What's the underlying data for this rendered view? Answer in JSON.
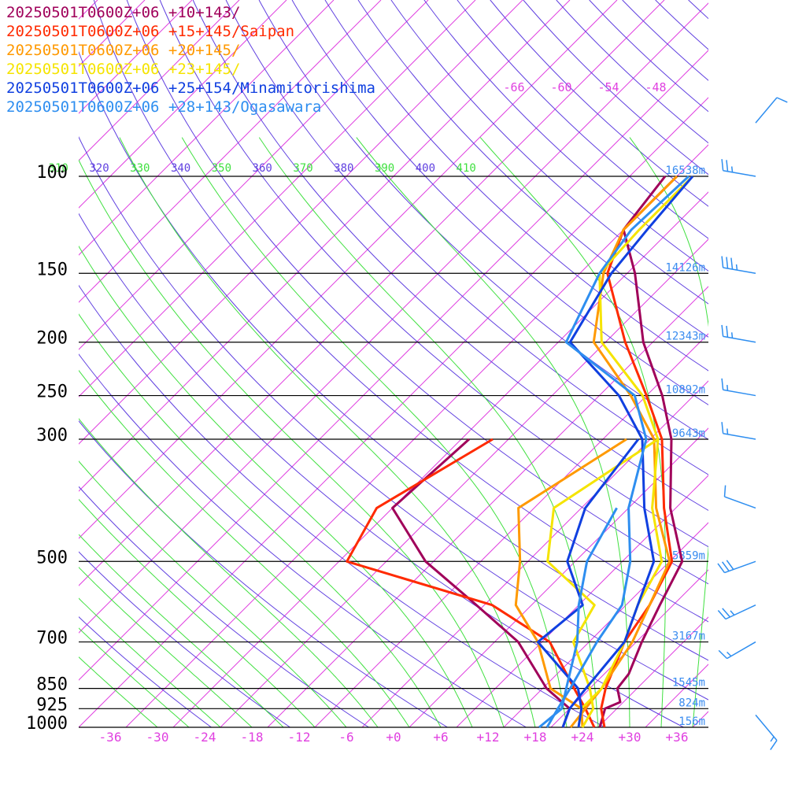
{
  "chart_data": {
    "type": "line",
    "title": "",
    "xlabel": "",
    "ylabel": "",
    "xlim": [
      -40,
      40
    ],
    "ylim_pressure": [
      1000,
      80
    ],
    "grid": true,
    "series": [
      {
        "name": "20250501T0600Z+06 +10+143/",
        "color": "#a0005a",
        "temperature": [
          [
            1000,
            26.2
          ],
          [
            925,
            24.5
          ],
          [
            900,
            25.6
          ],
          [
            850,
            23.5
          ],
          [
            800,
            23.1
          ],
          [
            700,
            20.7
          ],
          [
            600,
            18.3
          ],
          [
            500,
            15.6
          ],
          [
            400,
            7.3
          ],
          [
            300,
            -1.3
          ],
          [
            250,
            -8.0
          ],
          [
            200,
            -17.2
          ],
          [
            150,
            -27.0
          ],
          [
            125,
            -34.0
          ],
          [
            100,
            -35.5
          ]
        ],
        "dewpoint": [
          [
            1000,
            21.5
          ],
          [
            925,
            20.0
          ],
          [
            850,
            14.5
          ],
          [
            700,
            5.0
          ],
          [
            600,
            -5.0
          ],
          [
            500,
            -17.0
          ],
          [
            400,
            -28.0
          ],
          [
            300,
            -27.0
          ]
        ]
      },
      {
        "name": "20250501T0600Z+06 +15+145/Saipan",
        "color": "#ff2a00",
        "temperature": [
          [
            1000,
            26.8
          ],
          [
            925,
            24.0
          ],
          [
            850,
            22.0
          ],
          [
            700,
            18.5
          ],
          [
            600,
            17.0
          ],
          [
            500,
            14.3
          ],
          [
            400,
            6.5
          ],
          [
            300,
            -2.5
          ],
          [
            250,
            -10.0
          ],
          [
            200,
            -19.5
          ],
          [
            150,
            -30.5
          ],
          [
            125,
            -34.0
          ],
          [
            100,
            -34.0
          ]
        ],
        "dewpoint": [
          [
            1000,
            25.5
          ],
          [
            925,
            22.0
          ],
          [
            850,
            18.0
          ],
          [
            700,
            9.0
          ],
          [
            600,
            -3.0
          ],
          [
            500,
            -27.0
          ],
          [
            400,
            -30.0
          ],
          [
            300,
            -24.0
          ]
        ]
      },
      {
        "name": "20250501T0600Z+06 +20+145/",
        "color": "#ff9900",
        "temperature": [
          [
            1000,
            22.5
          ],
          [
            925,
            22.0
          ],
          [
            850,
            21.5
          ],
          [
            700,
            19.5
          ],
          [
            600,
            17.0
          ],
          [
            500,
            14.0
          ],
          [
            400,
            5.5
          ],
          [
            300,
            -3.5
          ],
          [
            250,
            -12.0
          ],
          [
            200,
            -23.5
          ],
          [
            150,
            -31.0
          ],
          [
            125,
            -34.0
          ],
          [
            100,
            -34.0
          ]
        ],
        "dewpoint": [
          [
            1000,
            24.0
          ],
          [
            925,
            21.5
          ],
          [
            850,
            15.0
          ],
          [
            700,
            7.5
          ],
          [
            600,
            0.0
          ],
          [
            500,
            -5.0
          ],
          [
            400,
            -12.0
          ],
          [
            300,
            -7.0
          ]
        ]
      },
      {
        "name": "20250501T0600Z+06 +23+145/",
        "color": "#f5e400",
        "temperature": [
          [
            1000,
            23.5
          ],
          [
            925,
            21.5
          ],
          [
            850,
            21.5
          ],
          [
            700,
            18.5
          ],
          [
            600,
            15.5
          ],
          [
            500,
            13.0
          ],
          [
            400,
            5.0
          ],
          [
            300,
            -3.0
          ],
          [
            250,
            -10.5
          ],
          [
            200,
            -22.5
          ],
          [
            150,
            -31.5
          ],
          [
            125,
            -32.0
          ],
          [
            100,
            -32.0
          ]
        ],
        "dewpoint": [
          [
            1000,
            24.0
          ],
          [
            925,
            23.0
          ],
          [
            850,
            20.0
          ],
          [
            700,
            12.0
          ],
          [
            600,
            10.0
          ],
          [
            500,
            -1.5
          ],
          [
            400,
            -7.5
          ],
          [
            300,
            -3.0
          ]
        ]
      },
      {
        "name": "20250501T0600Z+06 +25+154/Minamitorishima",
        "color": "#1040e0",
        "temperature": [
          [
            1000,
            21.5
          ],
          [
            925,
            20.0
          ],
          [
            850,
            19.5
          ],
          [
            700,
            18.5
          ],
          [
            600,
            15.5
          ],
          [
            500,
            12.0
          ],
          [
            400,
            4.0
          ],
          [
            300,
            -5.0
          ],
          [
            250,
            -13.5
          ],
          [
            200,
            -26.5
          ],
          [
            150,
            -30.0
          ],
          [
            125,
            -31.0
          ],
          [
            100,
            -32.0
          ]
        ],
        "dewpoint": [
          [
            1000,
            23.5
          ],
          [
            925,
            21.5
          ],
          [
            850,
            18.5
          ],
          [
            700,
            7.5
          ],
          [
            600,
            8.5
          ],
          [
            500,
            1.0
          ],
          [
            400,
            -3.5
          ],
          [
            300,
            -5.5
          ]
        ]
      },
      {
        "name": "20250501T0600Z+06 +28+143/Ogasawara",
        "color": "#2e8ef0",
        "temperature": [
          [
            1000,
            19.5
          ],
          [
            925,
            18.5
          ],
          [
            850,
            17.5
          ],
          [
            700,
            15.0
          ],
          [
            600,
            13.5
          ],
          [
            500,
            9.0
          ],
          [
            400,
            2.0
          ],
          [
            300,
            -4.5
          ],
          [
            250,
            -11.5
          ],
          [
            200,
            -27.0
          ],
          [
            150,
            -31.5
          ],
          [
            125,
            -33.0
          ],
          [
            100,
            -32.5
          ]
        ],
        "dewpoint": [
          [
            1000,
            18.5
          ],
          [
            925,
            19.0
          ],
          [
            850,
            17.0
          ],
          [
            700,
            12.5
          ],
          [
            600,
            8.0
          ],
          [
            500,
            3.5
          ],
          [
            400,
            0.5
          ]
        ]
      }
    ],
    "pressure_levels": [
      {
        "p": 100,
        "label": "100",
        "height": "16538m"
      },
      {
        "p": 150,
        "label": "150",
        "height": "14126m"
      },
      {
        "p": 200,
        "label": "200",
        "height": "12343m"
      },
      {
        "p": 250,
        "label": "250",
        "height": "10892m"
      },
      {
        "p": 300,
        "label": "300",
        "height": "9643m"
      },
      {
        "p": 500,
        "label": "500",
        "height": "5859m"
      },
      {
        "p": 700,
        "label": "700",
        "height": "3167m"
      },
      {
        "p": 850,
        "label": "850",
        "height": "1545m"
      },
      {
        "p": 925,
        "label": "925",
        "height": "824m"
      },
      {
        "p": 1000,
        "label": "1000",
        "height": "156m"
      }
    ],
    "x_ticks": [
      -36,
      -30,
      -24,
      -18,
      -12,
      -6,
      0,
      6,
      12,
      18,
      24,
      30,
      36
    ],
    "x_tick_labels": [
      "-36",
      "-30",
      "-24",
      "-18",
      "-12",
      "-6",
      "+0",
      "+6",
      "+12",
      "+18",
      "+24",
      "+30",
      "+36"
    ],
    "isotherm_top_labels": [
      "-66",
      "-60",
      "-54",
      "-48"
    ],
    "isotherm_top_values": [
      -66,
      -60,
      -54,
      -48
    ],
    "theta_labels": [
      "310",
      "320",
      "330",
      "340",
      "350",
      "360",
      "370",
      "380",
      "390",
      "400",
      "410"
    ],
    "theta_values": [
      310,
      320,
      330,
      340,
      350,
      360,
      370,
      380,
      390,
      400,
      410
    ],
    "wind": [
      {
        "p": 80,
        "speed_kt": 10,
        "dir": 40
      },
      {
        "p": 100,
        "speed_kt": 25,
        "dir": 280
      },
      {
        "p": 150,
        "speed_kt": 35,
        "dir": 280
      },
      {
        "p": 200,
        "speed_kt": 25,
        "dir": 280
      },
      {
        "p": 250,
        "speed_kt": 15,
        "dir": 280
      },
      {
        "p": 300,
        "speed_kt": 15,
        "dir": 280
      },
      {
        "p": 400,
        "speed_kt": 10,
        "dir": 290
      },
      {
        "p": 500,
        "speed_kt": 30,
        "dir": 250
      },
      {
        "p": 600,
        "speed_kt": 25,
        "dir": 245
      },
      {
        "p": 700,
        "speed_kt": 15,
        "dir": 240
      },
      {
        "p": 950,
        "speed_kt": 15,
        "dir": 140
      }
    ],
    "colors": {
      "isotherm": "#e040e0",
      "dry_adiabat": "#6040e0",
      "moist_adiabat": "#40e040",
      "isobar": "#000000",
      "axis_text": "#e040e0",
      "height_text": "#3a8cf0",
      "pressure_text": "#000000",
      "wind_barb": "#2e8ef0"
    }
  }
}
